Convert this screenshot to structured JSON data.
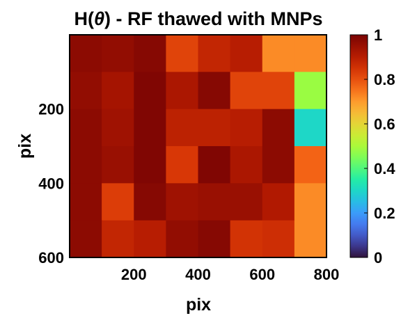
{
  "chart_data": {
    "type": "heatmap",
    "title_prefix": "H(",
    "title_symbol": "θ",
    "title_suffix": ") - RF thawed with MNPs",
    "xlabel": "pix",
    "ylabel": "pix",
    "xlim": [
      0,
      800
    ],
    "ylim": [
      0,
      600
    ],
    "y_reversed": true,
    "xticks": [
      200,
      400,
      600,
      800
    ],
    "yticks": [
      200,
      400,
      600
    ],
    "colorbar": {
      "colormap": "turbo",
      "range": [
        0,
        1
      ],
      "ticks": [
        "0",
        "0.2",
        "0.4",
        "0.6",
        "0.8",
        "1"
      ]
    },
    "grid": false,
    "rows": 6,
    "cols": 8,
    "values": [
      [
        0.97,
        0.96,
        0.98,
        0.82,
        0.88,
        0.9,
        0.72,
        0.72
      ],
      [
        0.96,
        0.93,
        0.99,
        0.92,
        0.98,
        0.82,
        0.82,
        0.48
      ],
      [
        0.97,
        0.94,
        0.99,
        0.89,
        0.89,
        0.9,
        0.97,
        0.3
      ],
      [
        0.97,
        0.95,
        0.99,
        0.84,
        0.99,
        0.92,
        0.97,
        0.77
      ],
      [
        0.97,
        0.83,
        0.98,
        0.94,
        0.95,
        0.95,
        0.91,
        0.72
      ],
      [
        0.97,
        0.88,
        0.9,
        0.96,
        0.98,
        0.85,
        0.86,
        0.72
      ]
    ]
  }
}
